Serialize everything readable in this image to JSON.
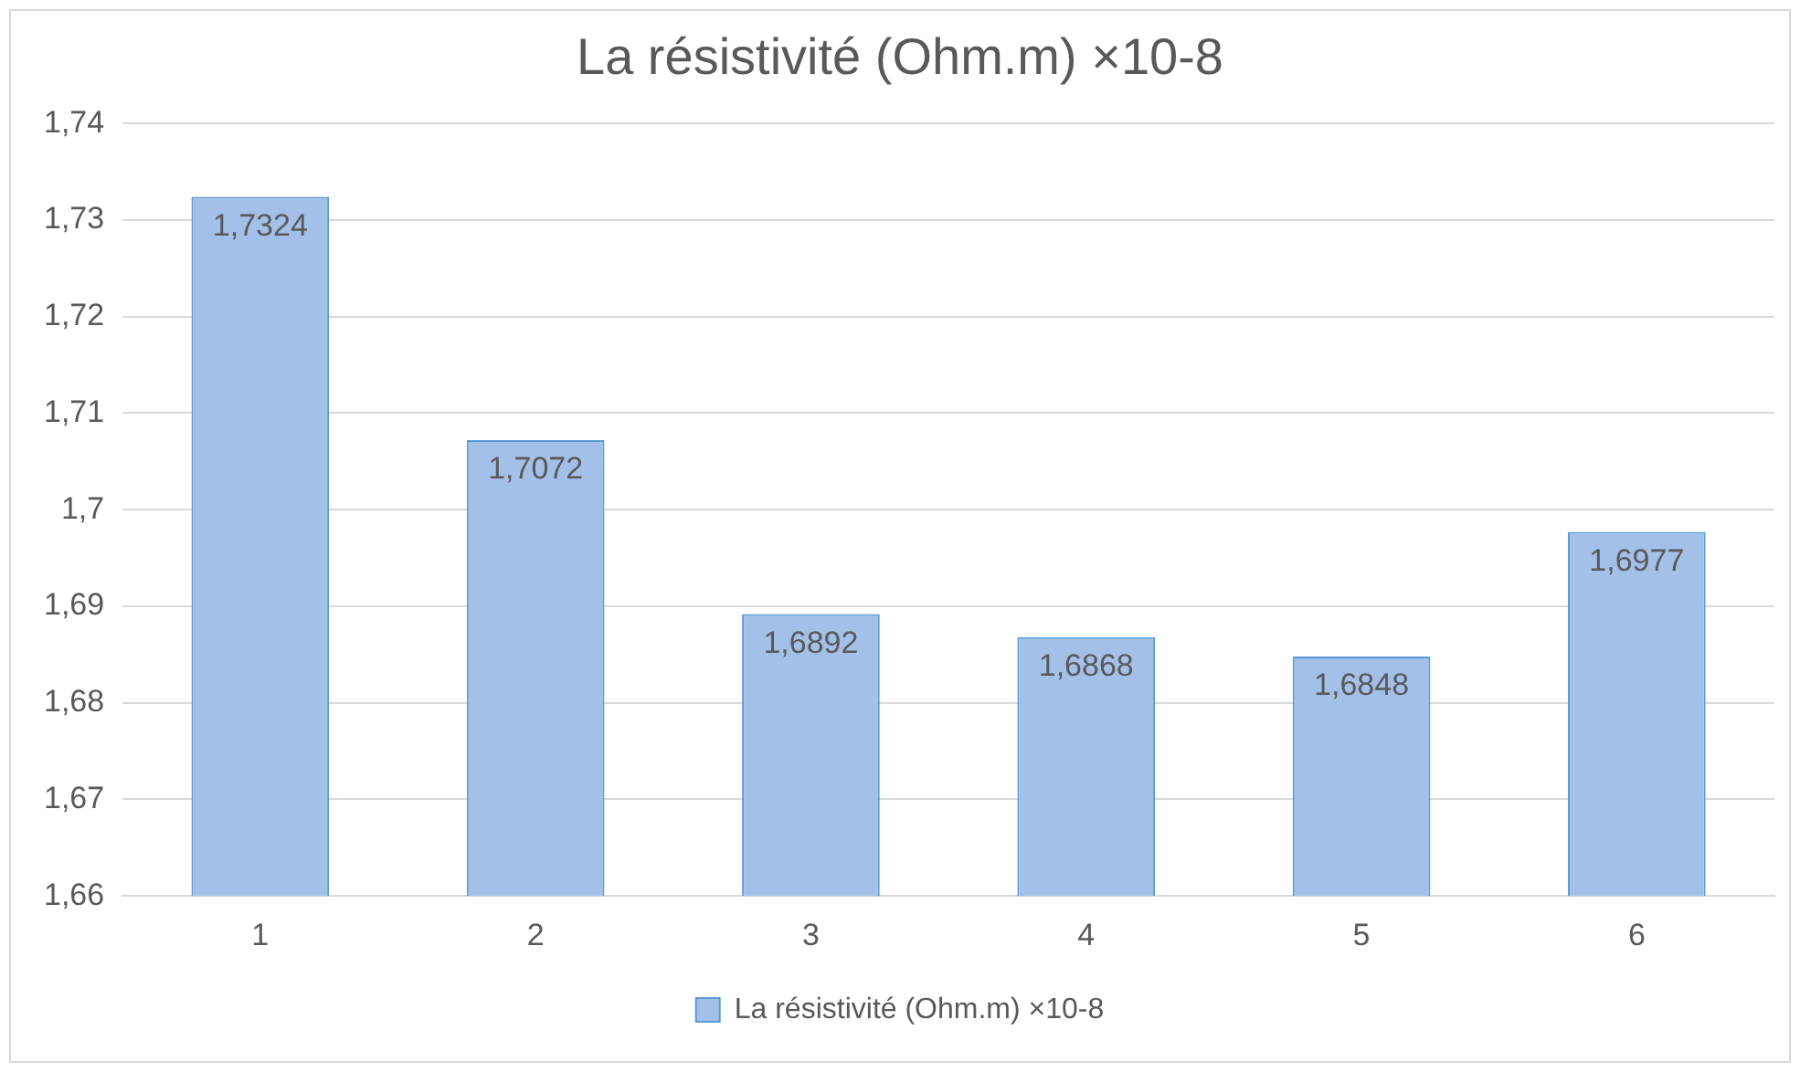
{
  "chart_data": {
    "type": "bar",
    "title": "La résistivité (Ohm.m) ×10-8",
    "categories": [
      "1",
      "2",
      "3",
      "4",
      "5",
      "6"
    ],
    "series": [
      {
        "name": "La résistivité (Ohm.m) ×10-8",
        "color": "#a3c1e8",
        "values": [
          1.7324,
          1.7072,
          1.6892,
          1.6868,
          1.6848,
          1.6977
        ],
        "value_labels": [
          "1,7324",
          "1,7072",
          "1,6892",
          "1,6868",
          "1,6848",
          "1,6977"
        ]
      }
    ],
    "ylim": [
      1.66,
      1.74
    ],
    "yticks": [
      {
        "value": 1.66,
        "label": "1,66"
      },
      {
        "value": 1.67,
        "label": "1,67"
      },
      {
        "value": 1.68,
        "label": "1,68"
      },
      {
        "value": 1.69,
        "label": "1,69"
      },
      {
        "value": 1.7,
        "label": "1,7"
      },
      {
        "value": 1.71,
        "label": "1,71"
      },
      {
        "value": 1.72,
        "label": "1,72"
      },
      {
        "value": 1.73,
        "label": "1,73"
      },
      {
        "value": 1.74,
        "label": "1,74"
      }
    ],
    "grid": "y",
    "legend": "bottom"
  }
}
